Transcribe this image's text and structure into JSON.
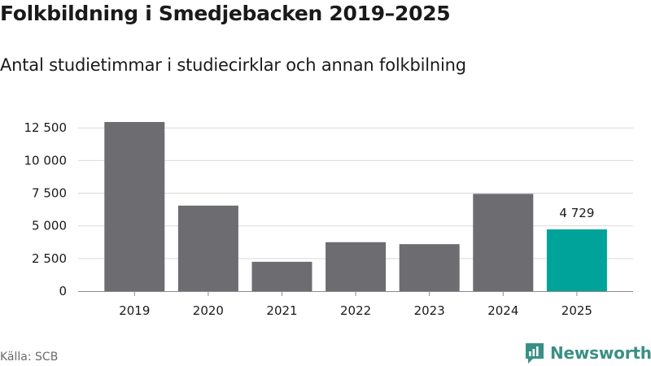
{
  "header": {
    "title": "Folkbildning i Smedjebacken 2019–2025",
    "subtitle": "Antal studietimmar i studiecirklar och annan folkbilning"
  },
  "footer": {
    "source": "Källa: SCB",
    "brand": "Newsworthy"
  },
  "colors": {
    "bar_default": "#6d6c71",
    "bar_highlight": "#00a39a",
    "grid": "#d9d9d9",
    "axis": "#8c8c8c",
    "brand": "#3a8f85"
  },
  "chart_data": {
    "type": "bar",
    "categories": [
      "2019",
      "2020",
      "2021",
      "2022",
      "2023",
      "2024",
      "2025"
    ],
    "values": [
      12950,
      6550,
      2250,
      3750,
      3600,
      7450,
      4729
    ],
    "highlight_index": 6,
    "data_labels": [
      {
        "index": 6,
        "text": "4 729"
      }
    ],
    "yticks": [
      0,
      2500,
      5000,
      7500,
      10000,
      12500
    ],
    "ytick_labels": [
      "0",
      "2 500",
      "5 000",
      "7 500",
      "10 000",
      "12 500"
    ],
    "ylim": [
      0,
      12950
    ],
    "grid": true,
    "legend": "none"
  }
}
